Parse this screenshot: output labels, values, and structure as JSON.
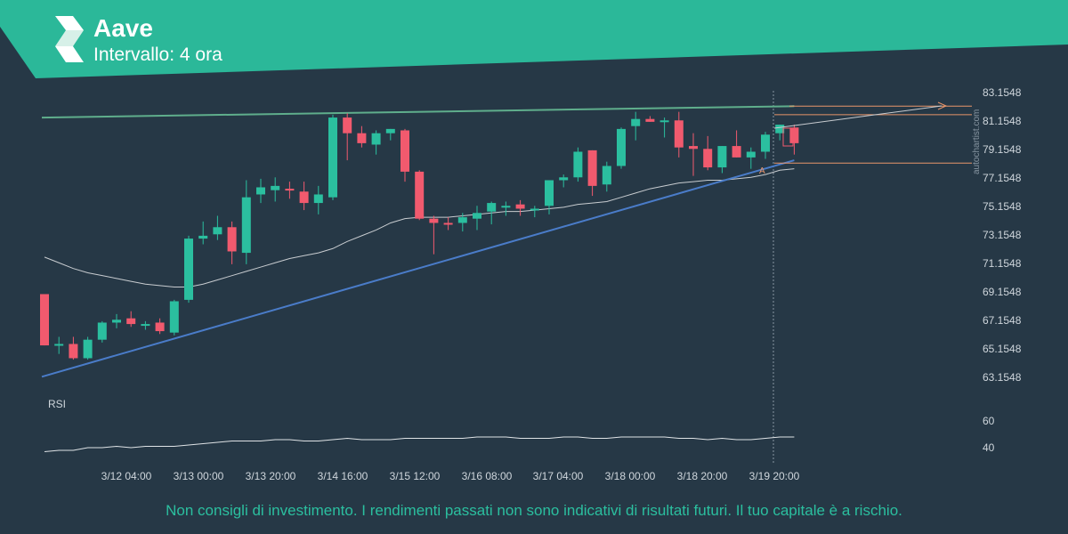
{
  "header": {
    "title": "Aave",
    "subtitle": "Intervallo: 4 ora",
    "brand_color": "#2bb899",
    "logo_icon": "autochartist-logo-icon"
  },
  "watermark": "autochartist.com",
  "footer": {
    "disclaimer": "Non consigli di investimento. I rendimenti passati non sono indicativi di risultati futuri. Il tuo capitale è a rischio."
  },
  "colors": {
    "background": "#263846",
    "bull": "#2bbf9f",
    "bear": "#f15a6e",
    "support": "#4a7cc9",
    "resistance": "#5fae8c",
    "forecast": "#e8956a",
    "ma": "#c8ccd0"
  },
  "chart_data": [
    {
      "type": "candlestick",
      "ylim": [
        61.6,
        84.0
      ],
      "y_ticks": [
        "83.1548",
        "81.1548",
        "79.1548",
        "77.1548",
        "75.1548",
        "73.1548",
        "71.1548",
        "69.1548",
        "67.1548",
        "65.1548",
        "63.1548"
      ],
      "x_tick_labels": [
        "3/12 04:00",
        "3/13 00:00",
        "3/13 20:00",
        "3/14 16:00",
        "3/15 12:00",
        "3/16 08:00",
        "3/17 04:00",
        "3/18 00:00",
        "3/18 20:00",
        "3/19 20:00"
      ],
      "candles": [
        [
          69.0,
          69.0,
          65.4,
          65.4
        ],
        [
          65.4,
          66.0,
          64.8,
          65.5
        ],
        [
          65.5,
          66.0,
          64.4,
          64.5
        ],
        [
          64.5,
          66.0,
          64.4,
          65.8
        ],
        [
          65.8,
          67.1,
          65.6,
          67.0
        ],
        [
          67.0,
          67.6,
          66.6,
          67.2
        ],
        [
          67.3,
          67.8,
          66.7,
          66.9
        ],
        [
          66.8,
          67.1,
          66.5,
          66.9
        ],
        [
          67.0,
          67.3,
          66.2,
          66.4
        ],
        [
          66.3,
          68.6,
          66.1,
          68.5
        ],
        [
          68.6,
          73.1,
          68.4,
          72.9
        ],
        [
          72.9,
          74.1,
          72.5,
          73.1
        ],
        [
          73.2,
          74.5,
          72.8,
          73.7
        ],
        [
          73.7,
          74.1,
          71.1,
          72.0
        ],
        [
          71.9,
          77.0,
          71.1,
          75.8
        ],
        [
          76.0,
          77.1,
          75.4,
          76.5
        ],
        [
          76.3,
          77.2,
          75.5,
          76.6
        ],
        [
          76.4,
          76.9,
          75.7,
          76.3
        ],
        [
          76.2,
          76.9,
          74.9,
          75.4
        ],
        [
          75.4,
          76.6,
          74.6,
          76.0
        ],
        [
          75.8,
          81.6,
          75.6,
          81.4
        ],
        [
          81.4,
          81.7,
          78.4,
          80.3
        ],
        [
          80.3,
          80.8,
          79.3,
          79.6
        ],
        [
          79.5,
          80.5,
          78.8,
          80.3
        ],
        [
          80.3,
          80.6,
          79.8,
          80.6
        ],
        [
          80.5,
          80.6,
          76.9,
          77.6
        ],
        [
          77.6,
          77.7,
          74.2,
          74.3
        ],
        [
          74.3,
          74.5,
          71.8,
          74.0
        ],
        [
          74.0,
          74.4,
          73.5,
          73.9
        ],
        [
          74.0,
          74.7,
          73.4,
          74.4
        ],
        [
          74.3,
          75.2,
          73.5,
          74.7
        ],
        [
          74.8,
          75.5,
          73.9,
          75.4
        ],
        [
          75.2,
          75.5,
          74.5,
          75.2
        ],
        [
          75.3,
          75.6,
          74.5,
          75.0
        ],
        [
          74.9,
          75.2,
          74.4,
          75.0
        ],
        [
          75.2,
          77.0,
          74.6,
          77.0
        ],
        [
          77.0,
          77.4,
          76.5,
          77.2
        ],
        [
          77.2,
          79.3,
          76.9,
          79.0
        ],
        [
          79.1,
          79.1,
          75.9,
          76.6
        ],
        [
          76.7,
          78.3,
          76.2,
          78.0
        ],
        [
          78.0,
          80.7,
          77.8,
          80.6
        ],
        [
          80.8,
          81.8,
          79.8,
          81.3
        ],
        [
          81.3,
          81.5,
          81.1,
          81.1
        ],
        [
          81.2,
          81.4,
          80.0,
          81.2
        ],
        [
          81.2,
          81.8,
          78.6,
          79.3
        ],
        [
          79.4,
          80.3,
          77.3,
          79.2
        ],
        [
          79.2,
          80.1,
          77.7,
          77.9
        ],
        [
          77.9,
          79.4,
          77.5,
          79.4
        ],
        [
          79.4,
          80.5,
          78.6,
          78.6
        ],
        [
          78.6,
          79.3,
          77.8,
          79.0
        ],
        [
          79.0,
          80.4,
          78.5,
          80.2
        ],
        [
          80.3,
          80.9,
          79.8,
          80.9
        ],
        [
          80.7,
          80.9,
          78.8,
          79.6
        ]
      ],
      "moving_average": [
        71.6,
        71.2,
        70.8,
        70.5,
        70.3,
        70.1,
        69.9,
        69.7,
        69.6,
        69.5,
        69.5,
        69.7,
        70.0,
        70.3,
        70.6,
        70.9,
        71.2,
        71.5,
        71.7,
        71.9,
        72.2,
        72.7,
        73.1,
        73.5,
        74.0,
        74.3,
        74.4,
        74.4,
        74.4,
        74.5,
        74.6,
        74.7,
        74.8,
        74.8,
        74.9,
        75.0,
        75.1,
        75.3,
        75.4,
        75.5,
        75.8,
        76.1,
        76.4,
        76.6,
        76.8,
        76.9,
        77.0,
        77.0,
        77.1,
        77.2,
        77.4,
        77.7,
        77.8
      ],
      "trendlines": {
        "resistance": [
          [
            81.4,
            0
          ],
          [
            82.2,
            52
          ]
        ],
        "support": [
          [
            63.2,
            0
          ],
          [
            78.4,
            52
          ]
        ]
      },
      "forecast_levels": [
        82.2,
        81.6,
        78.2
      ],
      "forecast_label": "A"
    },
    {
      "type": "line",
      "name": "RSI",
      "y_ticks": [
        "60",
        "40"
      ],
      "ylim": [
        28,
        76
      ],
      "values": [
        37,
        38,
        38,
        40,
        40,
        41,
        40,
        41,
        41,
        41,
        42,
        43,
        44,
        45,
        45,
        45,
        46,
        46,
        45,
        45,
        46,
        47,
        46,
        46,
        46,
        47,
        47,
        47,
        47,
        47,
        48,
        48,
        48,
        47,
        47,
        47,
        48,
        48,
        47,
        47,
        48,
        48,
        48,
        48,
        47,
        47,
        46,
        47,
        46,
        46,
        47,
        48,
        48
      ]
    }
  ]
}
